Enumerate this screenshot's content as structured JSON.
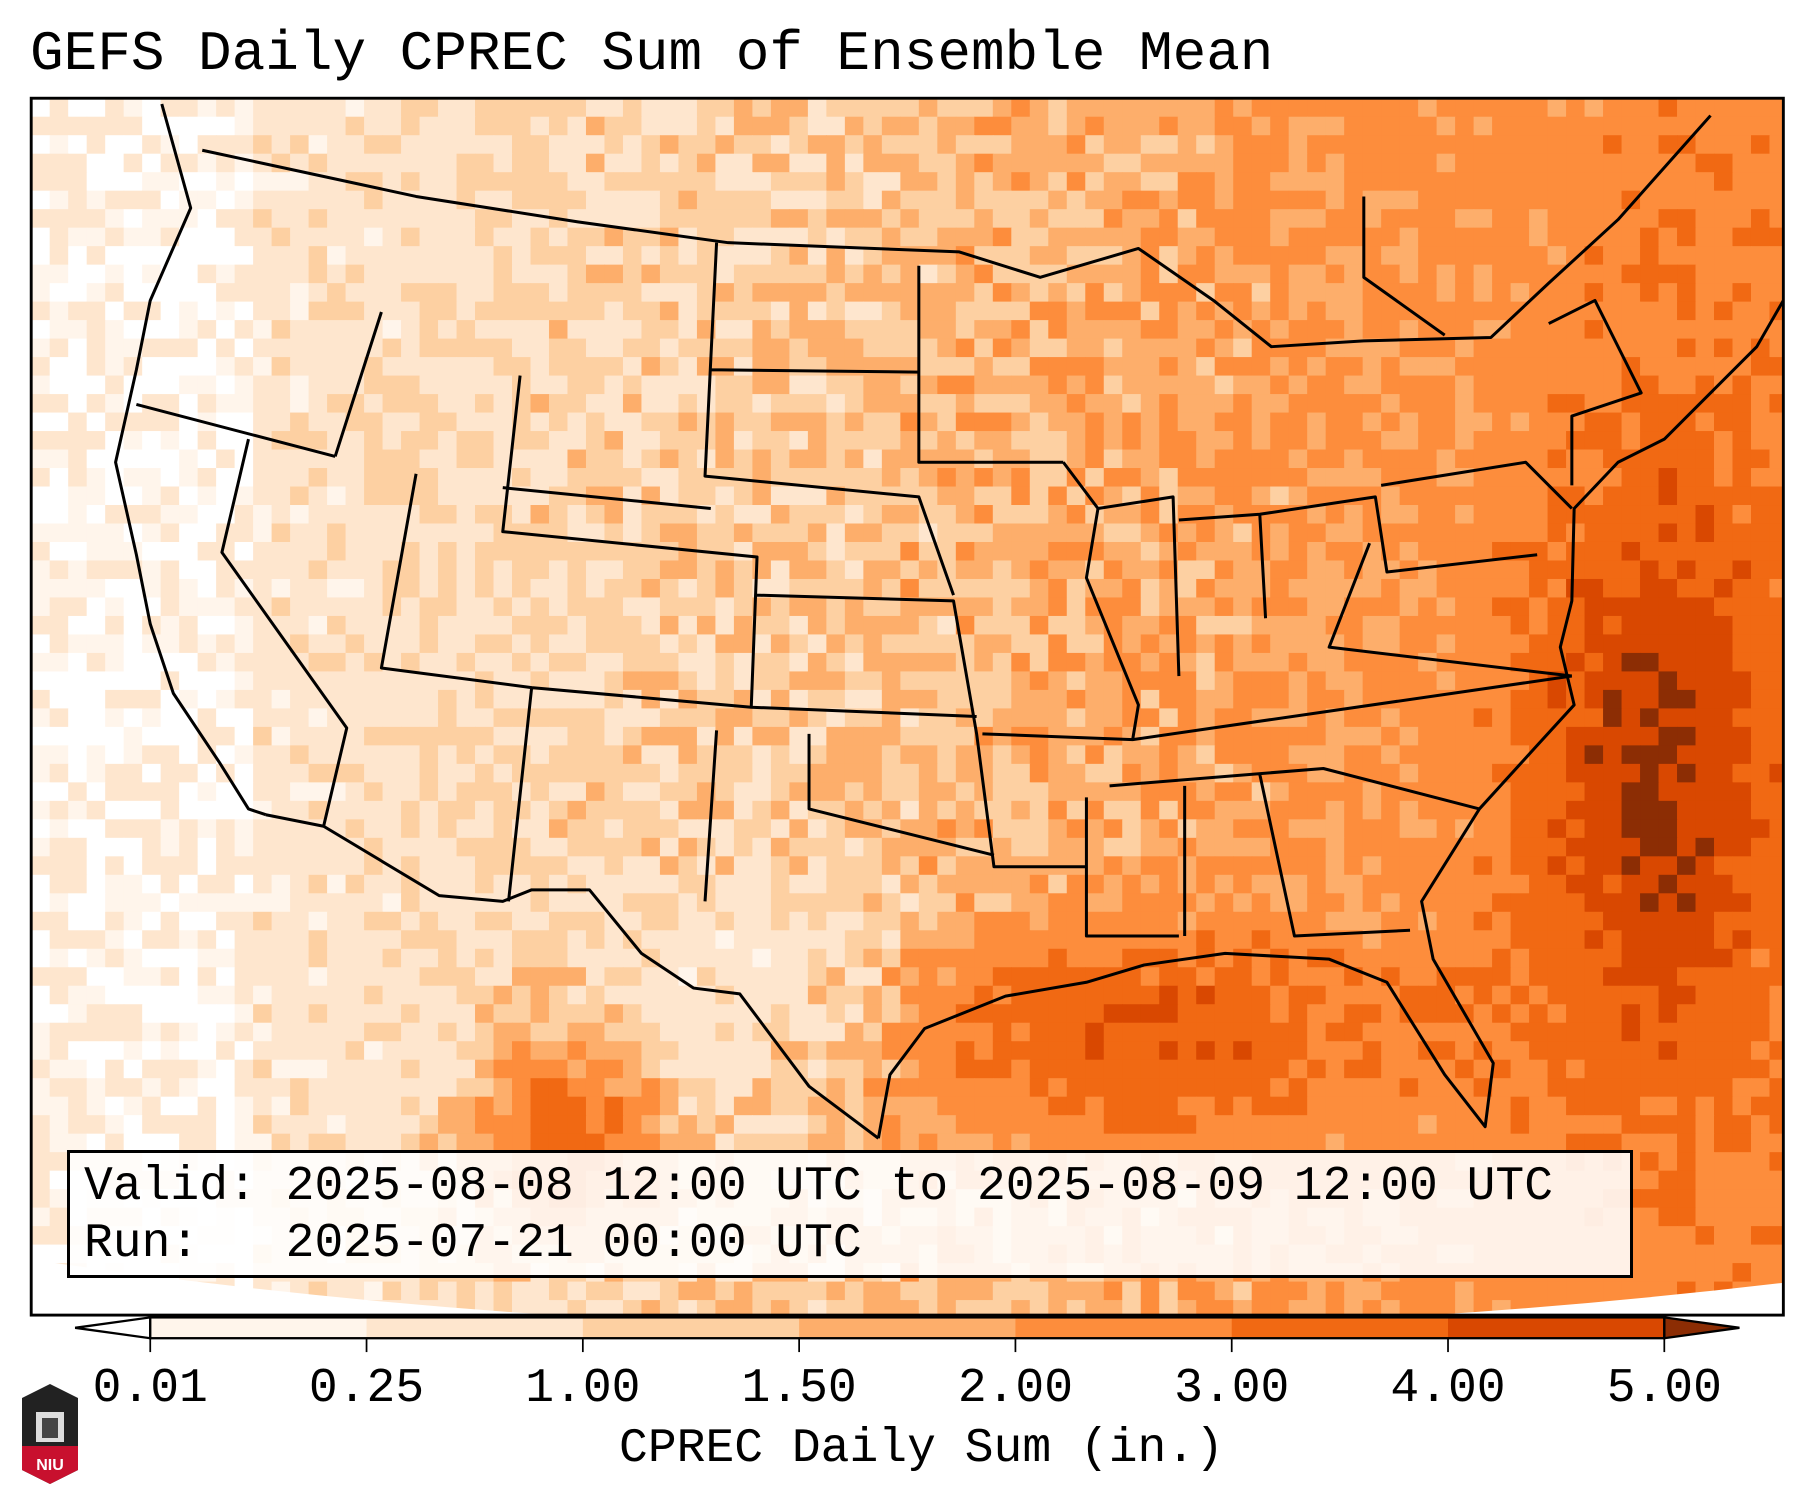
{
  "title": "GEFS Daily CPREC Sum of Ensemble Mean",
  "info_box": {
    "valid_line": "Valid: 2025-08-08 12:00 UTC to 2025-08-09 12:00 UTC",
    "run_line": "Run:   2025-07-21 00:00 UTC"
  },
  "colorbar": {
    "label": "CPREC Daily Sum (in.)",
    "ticks": [
      "0.01",
      "0.25",
      "1.00",
      "1.50",
      "2.00",
      "3.00",
      "4.00",
      "5.00"
    ],
    "colors": [
      "#fff5eb",
      "#fee6ce",
      "#fdd0a2",
      "#fdae6b",
      "#fd8d3c",
      "#f16913",
      "#d94801"
    ],
    "under_color": "#ffffff",
    "over_color": "#8c2d04"
  },
  "logo": {
    "text": "NIU"
  }
}
